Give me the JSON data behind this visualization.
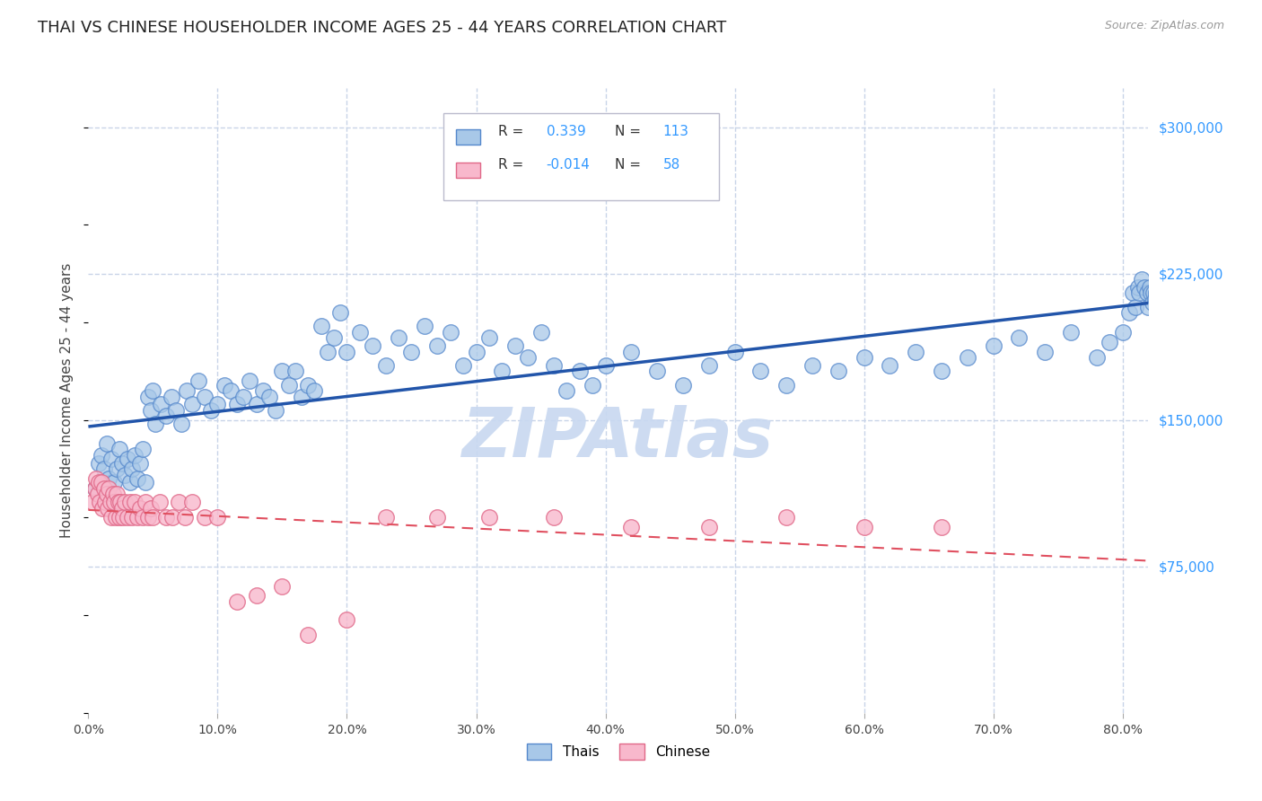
{
  "title": "THAI VS CHINESE HOUSEHOLDER INCOME AGES 25 - 44 YEARS CORRELATION CHART",
  "source": "Source: ZipAtlas.com",
  "xlabel_ticks": [
    "0.0%",
    "10.0%",
    "20.0%",
    "30.0%",
    "40.0%",
    "50.0%",
    "60.0%",
    "70.0%",
    "80.0%"
  ],
  "ylabel_label": "Householder Income Ages 25 - 44 years",
  "ylabel_ticks": [
    0,
    75000,
    150000,
    225000,
    300000
  ],
  "ylabel_tick_labels": [
    "",
    "$75,000",
    "$150,000",
    "$225,000",
    "$300,000"
  ],
  "xlim": [
    0.0,
    0.82
  ],
  "ylim": [
    0,
    320000
  ],
  "thai_color": "#a8c8e8",
  "thai_edge_color": "#5588cc",
  "chinese_color": "#f8b8cc",
  "chinese_edge_color": "#e06888",
  "thai_line_color": "#2255aa",
  "chinese_line_color": "#e05060",
  "watermark_color": "#c8d8f0",
  "background_color": "#ffffff",
  "grid_color": "#c8d4e8",
  "title_color": "#222222",
  "source_color": "#999999",
  "tick_label_color_y": "#3399ff",
  "tick_label_color_x": "#444444",
  "r_thai": "0.339",
  "n_thai": "113",
  "r_chinese": "-0.014",
  "n_chinese": "58",
  "thai_x": [
    0.005,
    0.008,
    0.01,
    0.012,
    0.014,
    0.016,
    0.018,
    0.02,
    0.022,
    0.024,
    0.026,
    0.028,
    0.03,
    0.032,
    0.034,
    0.036,
    0.038,
    0.04,
    0.042,
    0.044,
    0.046,
    0.048,
    0.05,
    0.052,
    0.056,
    0.06,
    0.064,
    0.068,
    0.072,
    0.076,
    0.08,
    0.085,
    0.09,
    0.095,
    0.1,
    0.105,
    0.11,
    0.115,
    0.12,
    0.125,
    0.13,
    0.135,
    0.14,
    0.145,
    0.15,
    0.155,
    0.16,
    0.165,
    0.17,
    0.175,
    0.18,
    0.185,
    0.19,
    0.195,
    0.2,
    0.21,
    0.22,
    0.23,
    0.24,
    0.25,
    0.26,
    0.27,
    0.28,
    0.29,
    0.3,
    0.31,
    0.32,
    0.33,
    0.34,
    0.35,
    0.36,
    0.37,
    0.38,
    0.39,
    0.4,
    0.42,
    0.44,
    0.46,
    0.48,
    0.5,
    0.52,
    0.54,
    0.56,
    0.58,
    0.6,
    0.62,
    0.64,
    0.66,
    0.68,
    0.7,
    0.72,
    0.74,
    0.76,
    0.78,
    0.79,
    0.8,
    0.805,
    0.808,
    0.81,
    0.812,
    0.813,
    0.815,
    0.817,
    0.819,
    0.82,
    0.821,
    0.822,
    0.823,
    0.824,
    0.825,
    0.826,
    0.827,
    0.828
  ],
  "thai_y": [
    115000,
    128000,
    132000,
    125000,
    138000,
    120000,
    130000,
    118000,
    125000,
    135000,
    128000,
    122000,
    130000,
    118000,
    125000,
    132000,
    120000,
    128000,
    135000,
    118000,
    162000,
    155000,
    165000,
    148000,
    158000,
    152000,
    162000,
    155000,
    148000,
    165000,
    158000,
    170000,
    162000,
    155000,
    158000,
    168000,
    165000,
    158000,
    162000,
    170000,
    158000,
    165000,
    162000,
    155000,
    175000,
    168000,
    175000,
    162000,
    168000,
    165000,
    198000,
    185000,
    192000,
    205000,
    185000,
    195000,
    188000,
    178000,
    192000,
    185000,
    198000,
    188000,
    195000,
    178000,
    185000,
    192000,
    175000,
    188000,
    182000,
    195000,
    178000,
    165000,
    175000,
    168000,
    178000,
    185000,
    175000,
    168000,
    178000,
    185000,
    175000,
    168000,
    178000,
    175000,
    182000,
    178000,
    185000,
    175000,
    182000,
    188000,
    192000,
    185000,
    195000,
    182000,
    190000,
    195000,
    205000,
    215000,
    208000,
    218000,
    215000,
    222000,
    218000,
    215000,
    208000,
    218000,
    215000,
    210000,
    215000,
    212000,
    215000,
    218000,
    215000
  ],
  "chinese_x": [
    0.003,
    0.005,
    0.006,
    0.007,
    0.008,
    0.009,
    0.01,
    0.011,
    0.012,
    0.013,
    0.014,
    0.015,
    0.016,
    0.017,
    0.018,
    0.019,
    0.02,
    0.021,
    0.022,
    0.023,
    0.024,
    0.025,
    0.026,
    0.027,
    0.028,
    0.03,
    0.032,
    0.034,
    0.036,
    0.038,
    0.04,
    0.042,
    0.044,
    0.046,
    0.048,
    0.05,
    0.055,
    0.06,
    0.065,
    0.07,
    0.075,
    0.08,
    0.09,
    0.1,
    0.115,
    0.13,
    0.15,
    0.17,
    0.2,
    0.23,
    0.27,
    0.31,
    0.36,
    0.42,
    0.48,
    0.54,
    0.6,
    0.66
  ],
  "chinese_y": [
    108000,
    115000,
    120000,
    112000,
    118000,
    108000,
    118000,
    105000,
    115000,
    108000,
    112000,
    105000,
    115000,
    108000,
    100000,
    112000,
    108000,
    100000,
    112000,
    108000,
    100000,
    108000,
    105000,
    100000,
    108000,
    100000,
    108000,
    100000,
    108000,
    100000,
    105000,
    100000,
    108000,
    100000,
    105000,
    100000,
    108000,
    100000,
    100000,
    108000,
    100000,
    108000,
    100000,
    100000,
    57000,
    60000,
    65000,
    40000,
    48000,
    100000,
    100000,
    100000,
    100000,
    95000,
    95000,
    100000,
    95000,
    95000
  ]
}
